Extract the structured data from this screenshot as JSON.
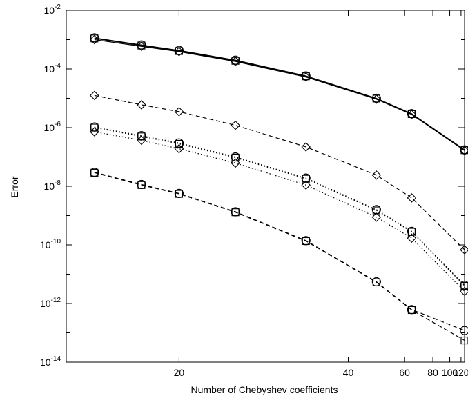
{
  "chart_data": {
    "type": "line",
    "title": "",
    "xlabel": "Number of Chebyshev coefficients",
    "ylabel": "Error",
    "xscale": "reciprocal",
    "yscale": "log",
    "xlim": [
      15,
      128
    ],
    "ylim": [
      1e-14,
      0.01
    ],
    "grid": false,
    "legend": "none",
    "x_ticks": [
      20,
      40,
      60,
      80,
      100,
      120
    ],
    "y_ticks": [
      {
        "value": 0.01,
        "base": "10",
        "exp": "-2"
      },
      {
        "value": 0.0001,
        "base": "10",
        "exp": "-4"
      },
      {
        "value": 1e-06,
        "base": "10",
        "exp": "-6"
      },
      {
        "value": 1e-08,
        "base": "10",
        "exp": "-8"
      },
      {
        "value": 1e-10,
        "base": "10",
        "exp": "-10"
      },
      {
        "value": 1e-12,
        "base": "10",
        "exp": "-12"
      },
      {
        "value": 1e-14,
        "base": "10",
        "exp": "-14"
      }
    ],
    "x": [
      16,
      18,
      20,
      24,
      32,
      48,
      64,
      128
    ],
    "series": [
      {
        "line": "solid",
        "marker": "circle",
        "y": [
          0.00115,
          0.00066,
          0.00043,
          0.0002,
          5.8e-05,
          1e-05,
          3e-06,
          1.75e-07
        ]
      },
      {
        "line": "solid",
        "marker": "square",
        "y": [
          0.0011,
          0.00063,
          0.00041,
          0.00019,
          5.6e-05,
          9.8e-06,
          2.9e-06,
          1.7e-07
        ]
      },
      {
        "line": "solid",
        "marker": "diamond",
        "y": [
          0.001,
          0.00059,
          0.00039,
          0.00018,
          5.3e-05,
          9.3e-06,
          2.8e-06,
          1.65e-07
        ]
      },
      {
        "line": "dashed",
        "marker": "diamond",
        "y": [
          1.25e-05,
          6e-06,
          3.5e-06,
          1.2e-06,
          2.2e-07,
          2.4e-08,
          4e-09,
          6.8e-11
        ]
      },
      {
        "line": "dotted",
        "marker": "circle",
        "y": [
          1.05e-06,
          5.3e-07,
          3e-07,
          1e-07,
          1.9e-08,
          1.6e-09,
          2.9e-10,
          4.2e-12
        ]
      },
      {
        "line": "dotted",
        "marker": "square",
        "y": [
          1e-06,
          5e-07,
          2.8e-07,
          9.5e-08,
          1.8e-08,
          1.5e-09,
          2.8e-10,
          4e-12
        ]
      },
      {
        "line": "dotted",
        "marker": "diamond",
        "y": [
          7.2e-07,
          3.7e-07,
          1.9e-07,
          6.2e-08,
          1.1e-08,
          8.8e-10,
          1.7e-10,
          2.6e-12
        ]
      },
      {
        "line": "dashed",
        "marker": "circle",
        "y": [
          3e-08,
          1.15e-08,
          5.7e-09,
          1.35e-09,
          1.4e-10,
          5.5e-12,
          6.2e-13,
          1.2e-13
        ]
      },
      {
        "line": "dashed",
        "marker": "square",
        "y": [
          2.9e-08,
          1.1e-08,
          5.5e-09,
          1.3e-09,
          1.35e-10,
          5.3e-12,
          6e-13,
          5.5e-14
        ]
      }
    ]
  }
}
